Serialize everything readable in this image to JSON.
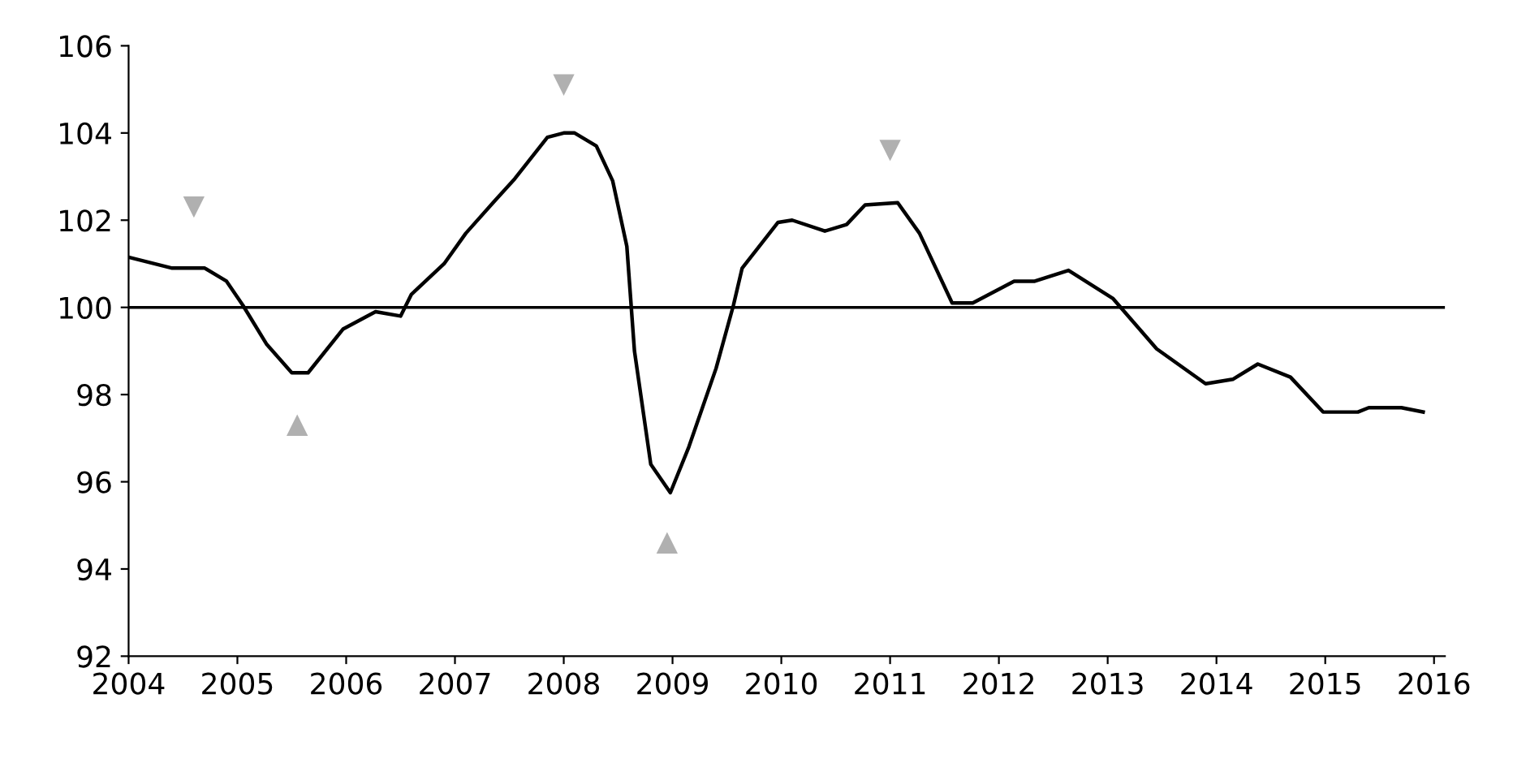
{
  "chart_data": {
    "type": "line",
    "xlim": [
      2004,
      2016.1
    ],
    "xticks": [
      2004,
      2005,
      2006,
      2007,
      2008,
      2009,
      2010,
      2011,
      2012,
      2013,
      2014,
      2015,
      2016
    ],
    "ylim": [
      92,
      106
    ],
    "yticks": [
      92,
      94,
      96,
      98,
      100,
      102,
      104,
      106
    ],
    "grid": false,
    "legend": false,
    "ref_lines": [
      {
        "axis": "y",
        "value": 100,
        "color": "#000000"
      }
    ],
    "series": [
      {
        "color": "#000000",
        "marker": "none",
        "line_style": "solid",
        "x": [
          2004.0,
          2004.4,
          2004.7,
          2004.9,
          2005.05,
          2005.27,
          2005.5,
          2005.65,
          2005.97,
          2006.27,
          2006.5,
          2006.6,
          2006.9,
          2007.1,
          2007.35,
          2007.55,
          2007.85,
          2008.0,
          2008.1,
          2008.3,
          2008.45,
          2008.58,
          2008.65,
          2008.8,
          2008.98,
          2009.15,
          2009.4,
          2009.56,
          2009.64,
          2009.97,
          2010.1,
          2010.4,
          2010.6,
          2010.77,
          2011.07,
          2011.27,
          2011.57,
          2011.76,
          2012.14,
          2012.33,
          2012.64,
          2013.05,
          2013.45,
          2013.9,
          2014.15,
          2014.38,
          2014.68,
          2014.98,
          2015.3,
          2015.4,
          2015.7,
          2015.9
        ],
        "values": [
          101.15,
          100.9,
          100.9,
          100.6,
          100.05,
          99.15,
          98.5,
          98.5,
          99.5,
          99.9,
          99.8,
          100.3,
          101.0,
          101.7,
          102.4,
          102.95,
          103.9,
          104.0,
          104.0,
          103.7,
          102.9,
          101.4,
          99.0,
          96.4,
          95.75,
          96.8,
          98.6,
          100.05,
          100.9,
          101.95,
          102.0,
          101.75,
          101.9,
          102.35,
          102.4,
          101.7,
          100.1,
          100.1,
          100.6,
          100.6,
          100.85,
          100.2,
          99.05,
          98.25,
          98.35,
          98.7,
          98.4,
          97.6,
          97.6,
          97.7,
          97.7,
          97.6
        ]
      },
      {
        "type": "scatter",
        "color": "#b0b0b0",
        "marker": "triangle",
        "x": [
          2004.6,
          2008.0,
          2011.0
        ],
        "values": [
          102.3,
          105.1,
          103.6
        ]
      },
      {
        "type": "scatter",
        "color": "#b0b0b0",
        "marker": "triangle",
        "x": [
          2005.55,
          2008.95
        ],
        "values": [
          97.3,
          94.6
        ]
      }
    ]
  }
}
